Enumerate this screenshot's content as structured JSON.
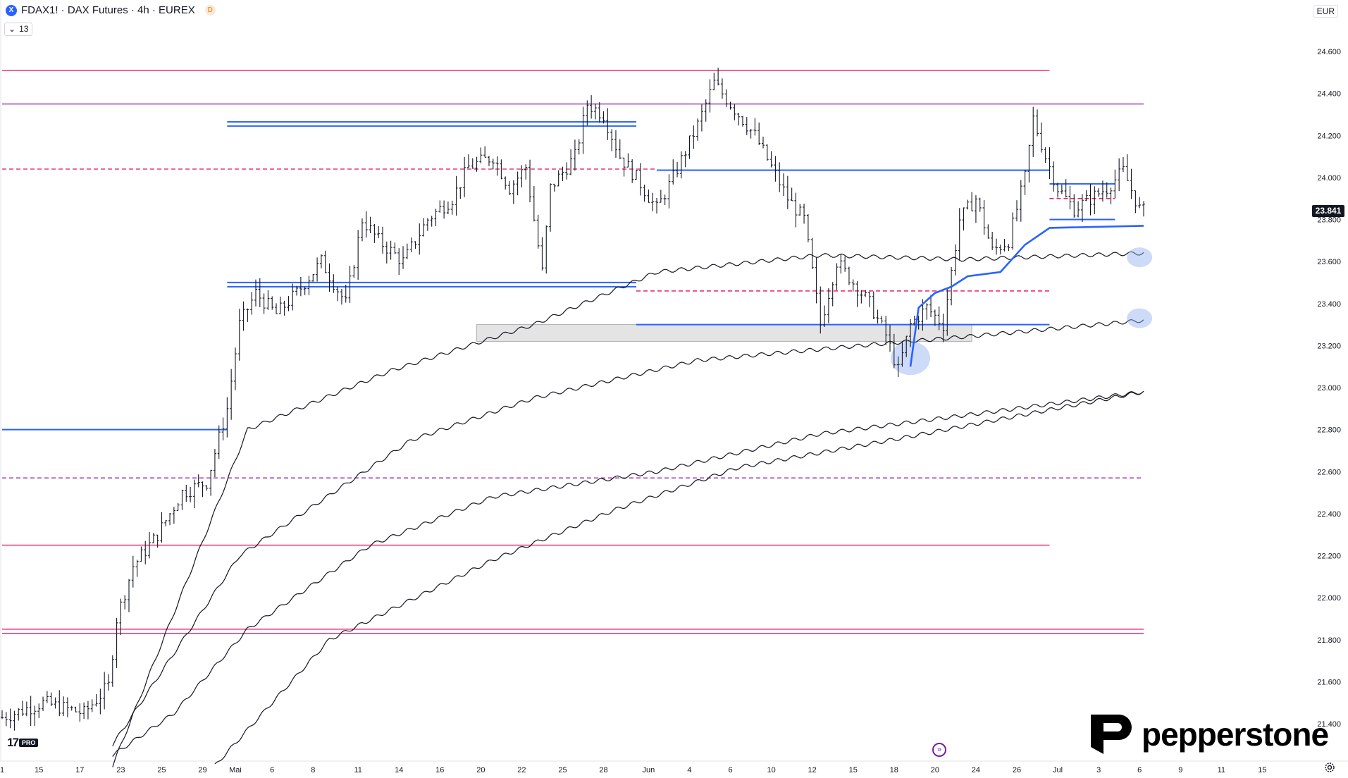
{
  "header": {
    "symbol_logo": "X",
    "title": "FDAX1! · DAX Futures · 4h · EUREX",
    "delay_badge": "D",
    "indicator_count": "13",
    "currency": "EUR"
  },
  "last_price": {
    "label": "23.841",
    "value": 23841
  },
  "branding": {
    "tv_mark": "17",
    "tv_tier": "PRO",
    "broker": "pepperstone"
  },
  "colors": {
    "candles": "#131722",
    "support_resistance": "#2962ff",
    "pink_levels": "#e91e63",
    "magenta_dashed": "#9c27b0",
    "moving_averages": "#131722",
    "highlight_circle": "#90b0f0",
    "zone": "#d9d9d9"
  },
  "icons": {
    "goto_realtime": "double-chevron-right-icon",
    "settings": "gear-icon",
    "indicator_toggle": "chevron-down-icon"
  },
  "chart_data": {
    "type": "candlestick",
    "interval": "4h",
    "ylim": [
      21200,
      24700
    ],
    "y_ticks": [
      "24.600",
      "24.400",
      "24.200",
      "24.000",
      "23.800",
      "23.600",
      "23.400",
      "23.200",
      "23.000",
      "22.800",
      "22.600",
      "22.400",
      "22.200",
      "22.000",
      "21.800",
      "21.600",
      "21.400"
    ],
    "y_tick_values": [
      24600,
      24400,
      24200,
      24000,
      23800,
      23600,
      23400,
      23200,
      23000,
      22800,
      22600,
      22400,
      22200,
      22000,
      21800,
      21600,
      21400
    ],
    "x_ticks": [
      "1",
      "15",
      "17",
      "23",
      "25",
      "29",
      "Mai",
      "6",
      "8",
      "11",
      "14",
      "16",
      "20",
      "22",
      "25",
      "28",
      "Jun",
      "4",
      "6",
      "10",
      "12",
      "15",
      "18",
      "20",
      "24",
      "26",
      "Jul",
      "3",
      "6",
      "9",
      "11",
      "15"
    ],
    "x_tick_index": [
      0,
      9,
      19,
      29,
      39,
      49,
      57,
      66,
      76,
      87,
      97,
      107,
      117,
      127,
      137,
      147,
      158,
      168,
      178,
      188,
      198,
      208,
      218,
      228,
      238,
      248,
      258,
      268,
      278,
      288,
      298,
      308
    ],
    "bars_count": 280,
    "close_anchors": [
      [
        0,
        21430
      ],
      [
        10,
        21500
      ],
      [
        20,
        21450
      ],
      [
        26,
        21580
      ],
      [
        28,
        21900
      ],
      [
        32,
        22150
      ],
      [
        38,
        22300
      ],
      [
        44,
        22500
      ],
      [
        50,
        22550
      ],
      [
        55,
        22900
      ],
      [
        58,
        23300
      ],
      [
        62,
        23450
      ],
      [
        67,
        23350
      ],
      [
        72,
        23450
      ],
      [
        78,
        23600
      ],
      [
        84,
        23400
      ],
      [
        88,
        23800
      ],
      [
        92,
        23700
      ],
      [
        98,
        23600
      ],
      [
        104,
        23800
      ],
      [
        110,
        23900
      ],
      [
        114,
        24050
      ],
      [
        120,
        24100
      ],
      [
        124,
        23950
      ],
      [
        128,
        24050
      ],
      [
        132,
        23550
      ],
      [
        134,
        23950
      ],
      [
        140,
        24100
      ],
      [
        143,
        24350
      ],
      [
        147,
        24300
      ],
      [
        151,
        24100
      ],
      [
        155,
        24000
      ],
      [
        160,
        23850
      ],
      [
        164,
        24000
      ],
      [
        170,
        24250
      ],
      [
        174,
        24450
      ],
      [
        180,
        24300
      ],
      [
        184,
        24200
      ],
      [
        188,
        24050
      ],
      [
        192,
        23900
      ],
      [
        196,
        23800
      ],
      [
        198,
        23550
      ],
      [
        200,
        23300
      ],
      [
        204,
        23600
      ],
      [
        208,
        23500
      ],
      [
        212,
        23400
      ],
      [
        216,
        23250
      ],
      [
        219,
        23080
      ],
      [
        222,
        23300
      ],
      [
        226,
        23380
      ],
      [
        230,
        23300
      ],
      [
        234,
        23800
      ],
      [
        238,
        23900
      ],
      [
        242,
        23650
      ],
      [
        246,
        23700
      ],
      [
        250,
        24000
      ],
      [
        252,
        24280
      ],
      [
        255,
        24100
      ],
      [
        258,
        23950
      ],
      [
        262,
        23850
      ],
      [
        266,
        23900
      ],
      [
        270,
        23950
      ],
      [
        274,
        24030
      ],
      [
        278,
        23850
      ],
      [
        279,
        23841
      ]
    ],
    "horizontal_levels": [
      {
        "price": 24510,
        "style": "solid",
        "color": "pink",
        "from": 0,
        "to": 256
      },
      {
        "price": 24350,
        "style": "solid",
        "color": "magenta",
        "from": 0,
        "to": 279
      },
      {
        "price": 24255,
        "style": "double",
        "color": "blue",
        "from": 55,
        "to": 155
      },
      {
        "price": 24040,
        "style": "dashed",
        "color": "pink",
        "from": 0,
        "to": 160
      },
      {
        "price": 24035,
        "style": "solid",
        "color": "blue",
        "from": 160,
        "to": 256
      },
      {
        "price": 23970,
        "style": "solid",
        "color": "blue",
        "from": 256,
        "to": 272
      },
      {
        "price": 23900,
        "style": "dashed",
        "color": "pink",
        "from": 256,
        "to": 272
      },
      {
        "price": 23800,
        "style": "solid",
        "color": "blue",
        "from": 256,
        "to": 272
      },
      {
        "price": 23490,
        "style": "double",
        "color": "blue",
        "from": 55,
        "to": 155
      },
      {
        "price": 23460,
        "style": "dashed",
        "color": "pink",
        "from": 155,
        "to": 256
      },
      {
        "price": 23300,
        "style": "solid",
        "color": "blue",
        "from": 155,
        "to": 256
      },
      {
        "price": 22800,
        "style": "solid",
        "color": "blue",
        "from": 0,
        "to": 55
      },
      {
        "price": 22570,
        "style": "dashed",
        "color": "magenta",
        "from": 0,
        "to": 279
      },
      {
        "price": 22250,
        "style": "solid",
        "color": "pink",
        "from": 0,
        "to": 256
      },
      {
        "price": 21840,
        "style": "double",
        "color": "pink",
        "from": 0,
        "to": 279
      }
    ],
    "zones": [
      {
        "from": 116,
        "to": 237,
        "price_top": 23300,
        "price_bottom": 23220
      }
    ],
    "highlights": [
      {
        "bar": 222,
        "price": 23140
      },
      {
        "bar": 278,
        "price": 23620
      },
      {
        "bar": 278,
        "price": 23330
      }
    ],
    "moving_averages": [
      {
        "name": "MA1",
        "points": [
          [
            27,
            21200
          ],
          [
            60,
            22800
          ],
          [
            95,
            23080
          ],
          [
            130,
            23300
          ],
          [
            160,
            23550
          ],
          [
            200,
            23630
          ],
          [
            235,
            23610
          ],
          [
            279,
            23640
          ]
        ]
      },
      {
        "name": "MA2",
        "points": [
          [
            27,
            21300
          ],
          [
            58,
            22200
          ],
          [
            100,
            22750
          ],
          [
            130,
            22950
          ],
          [
            170,
            23130
          ],
          [
            210,
            23200
          ],
          [
            240,
            23250
          ],
          [
            279,
            23320
          ]
        ]
      },
      {
        "name": "MA3",
        "points": [
          [
            27,
            21250
          ],
          [
            42,
            21450
          ],
          [
            60,
            21850
          ],
          [
            90,
            22250
          ],
          [
            120,
            22480
          ],
          [
            160,
            22600
          ],
          [
            200,
            22780
          ],
          [
            240,
            22880
          ],
          [
            279,
            22980
          ]
        ]
      },
      {
        "name": "MA4",
        "points": [
          [
            52,
            21200
          ],
          [
            80,
            21800
          ],
          [
            120,
            22180
          ],
          [
            150,
            22420
          ],
          [
            180,
            22620
          ],
          [
            220,
            22760
          ],
          [
            279,
            22980
          ]
        ]
      }
    ],
    "vwap": [
      [
        222,
        23100
      ],
      [
        224,
        23380
      ],
      [
        228,
        23450
      ],
      [
        232,
        23480
      ],
      [
        236,
        23530
      ],
      [
        244,
        23550
      ],
      [
        250,
        23680
      ],
      [
        256,
        23760
      ],
      [
        279,
        23770
      ]
    ]
  }
}
